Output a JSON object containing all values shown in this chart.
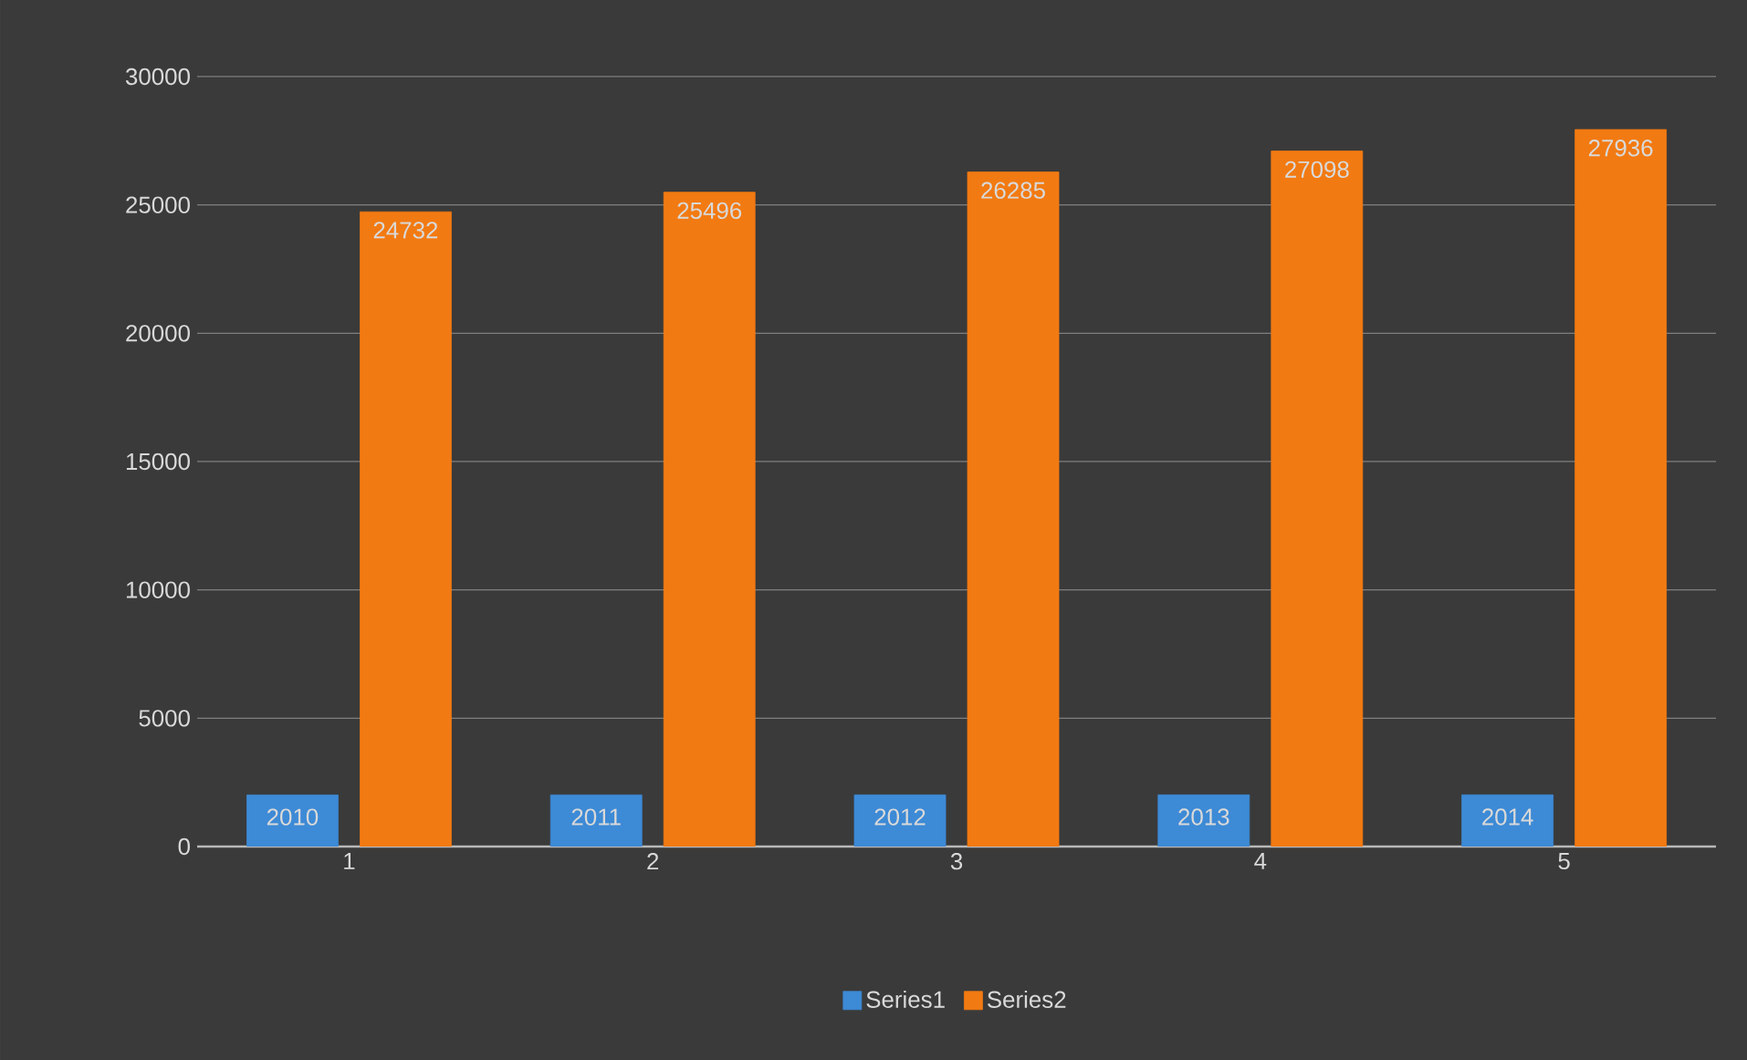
{
  "chart_data": {
    "type": "bar",
    "categories": [
      "1",
      "2",
      "3",
      "4",
      "5"
    ],
    "series": [
      {
        "name": "Series1",
        "color": "#3d8ad6",
        "values": [
          2010,
          2011,
          2012,
          2013,
          2014
        ]
      },
      {
        "name": "Series2",
        "color": "#f27a12",
        "values": [
          24732,
          25496,
          26285,
          27098,
          27936
        ]
      }
    ],
    "ylim": [
      0,
      30000
    ],
    "yticks": [
      0,
      5000,
      10000,
      15000,
      20000,
      25000,
      30000
    ],
    "grid": "y",
    "legend": "bottom",
    "data_labels": true
  }
}
